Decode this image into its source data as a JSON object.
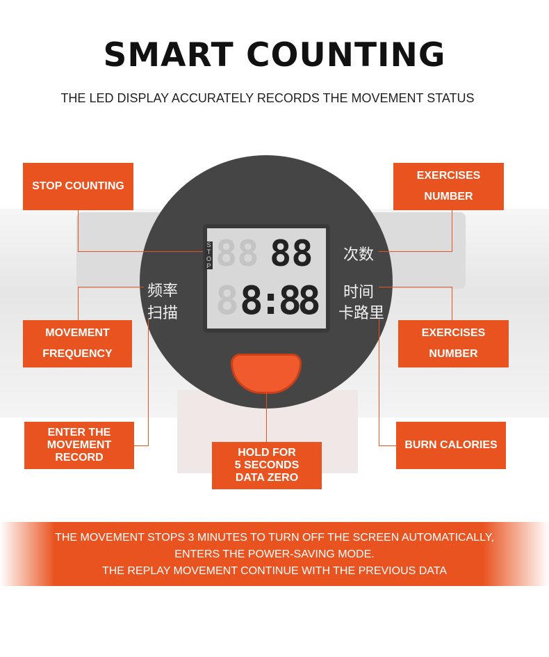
{
  "title": "SMART COUNTING",
  "subtitle": "THE LED DISPLAY ACCURATELY RECORDS THE MOVEMENT STATUS",
  "accent": "#e8531f",
  "labels": {
    "stop_counting": "STOP COUNTING",
    "exercises_number_top": [
      "EXERCISES",
      "NUMBER"
    ],
    "movement_frequency": [
      "MOVEMENT",
      "FREQUENCY"
    ],
    "exercises_number_bottom": [
      "EXERCISES",
      "NUMBER"
    ],
    "enter_record": [
      "ENTER THE",
      "MOVEMENT",
      "RECORD"
    ],
    "hold": [
      "HOLD FOR",
      "5 SECONDS",
      "DATA ZERO"
    ],
    "burn_calories": "BURN CALORIES"
  },
  "display": {
    "stop": "STOP",
    "row1": "88",
    "row2": "8:88",
    "left_cn": [
      "频率",
      "扫描"
    ],
    "right_cn": [
      "次数",
      "时间",
      "卡路里"
    ]
  },
  "notice": [
    "THE MOVEMENT STOPS 3 MINUTES TO TURN OFF THE SCREEN AUTOMATICALLY,",
    "ENTERS THE POWER-SAVING MODE.",
    "THE REPLAY MOVEMENT CONTINUE WITH THE PREVIOUS DATA"
  ]
}
